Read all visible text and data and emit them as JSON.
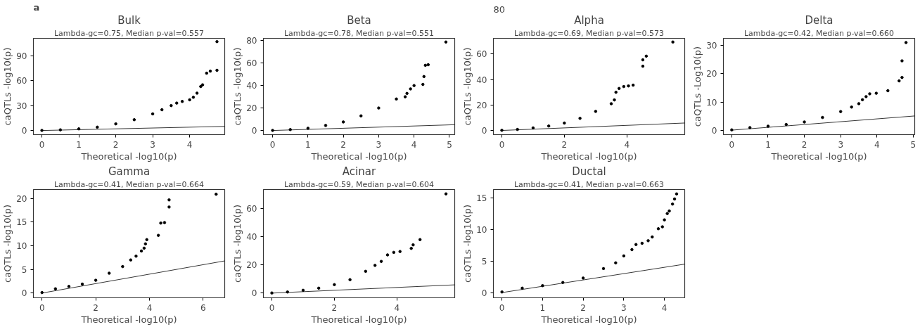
{
  "chart_data": [
    {
      "type": "scatter",
      "title": "Bulk",
      "subtitle": "Lambda-gc=0.75, Median p-val=0.557",
      "xlabel": "Theoretical -log10(p)",
      "ylabel": "caQTLs -log10(p)",
      "annotations": [
        "a"
      ],
      "grid": false,
      "xlim": [
        -0.23,
        4.95
      ],
      "ylim": [
        -5,
        111
      ],
      "xticks": [
        0,
        1,
        2,
        3,
        4
      ],
      "yticks": [
        0,
        30,
        60,
        90
      ],
      "series": [
        {
          "marker": "circle",
          "color": "#000000",
          "x": [
            0,
            0.5,
            1,
            1.5,
            2,
            2.5,
            3,
            3.25,
            3.5,
            3.65,
            3.8,
            4.0,
            4.1,
            4.2,
            4.3,
            4.35,
            4.46,
            4.56,
            4.74,
            4.74
          ],
          "values": [
            0.1,
            0.8,
            2,
            4,
            8,
            13,
            20,
            25,
            30,
            33,
            35,
            37,
            40,
            45,
            53,
            55,
            69,
            71.5,
            72.5,
            107
          ]
        },
        {
          "type": "line",
          "color": "#000000",
          "x": [
            0,
            4.95
          ],
          "values": [
            0,
            4.95
          ]
        }
      ]
    },
    {
      "type": "scatter",
      "title": "Beta",
      "subtitle": "Lambda-gc=0.78, Median p-val=0.551",
      "xlabel": "Theoretical -log10(p)",
      "ylabel": "caQTLs -log10(p)",
      "grid": false,
      "xlim": [
        -0.26,
        5.15
      ],
      "ylim": [
        -3.7,
        82
      ],
      "xticks": [
        0,
        1,
        2,
        3,
        4,
        5
      ],
      "yticks": [
        0,
        20,
        40,
        60,
        80
      ],
      "series": [
        {
          "marker": "circle",
          "color": "#000000",
          "x": [
            0,
            0.5,
            1,
            1.5,
            2,
            2.5,
            3,
            3.5,
            3.75,
            3.8,
            3.9,
            4.0,
            4.25,
            4.28,
            4.32,
            4.4,
            4.9
          ],
          "values": [
            0.1,
            0.8,
            2,
            4.5,
            7.6,
            13,
            20,
            28,
            30,
            33,
            37,
            40,
            41,
            48,
            58,
            58.5,
            78.7
          ]
        },
        {
          "type": "line",
          "color": "#000000",
          "x": [
            0,
            5.15
          ],
          "values": [
            0,
            5.15
          ]
        }
      ]
    },
    {
      "type": "scatter",
      "title": "Alpha",
      "subtitle": "Lambda-gc=0.69, Median p-val=0.573",
      "xlabel": "Theoretical -log10(p)",
      "ylabel": "caQTLs -log10(p)",
      "annotations": [
        "80"
      ],
      "grid": false,
      "xlim": [
        -0.27,
        5.85
      ],
      "ylim": [
        -3.3,
        72.4
      ],
      "xticks": [
        0,
        2,
        4
      ],
      "yticks": [
        0,
        20,
        40,
        60
      ],
      "series": [
        {
          "marker": "circle",
          "color": "#000000",
          "x": [
            0,
            0.5,
            1,
            1.5,
            2,
            2.5,
            3,
            3.5,
            3.6,
            3.65,
            3.75,
            3.9,
            4.05,
            4.2,
            4.51,
            4.51,
            4.62,
            5.47
          ],
          "values": [
            0.1,
            0.8,
            2,
            3.5,
            5.8,
            9.5,
            15,
            21,
            24,
            30,
            33,
            34.5,
            35,
            35.6,
            50.5,
            55.5,
            58.4,
            69.5
          ]
        },
        {
          "type": "line",
          "color": "#000000",
          "x": [
            0,
            5.85
          ],
          "values": [
            0,
            5.85
          ]
        }
      ]
    },
    {
      "type": "scatter",
      "title": "Delta",
      "subtitle": "Lambda-gc=0.42, Median p-val=0.660",
      "xlabel": "Theoretical -log10(p)",
      "ylabel": "caQTLs -Log10(p)",
      "grid": false,
      "xlim": [
        -0.23,
        5.04
      ],
      "ylim": [
        -1.6,
        32.6
      ],
      "xticks": [
        0,
        1,
        2,
        3,
        4,
        5
      ],
      "yticks": [
        0,
        10,
        20,
        30
      ],
      "series": [
        {
          "marker": "circle",
          "color": "#000000",
          "x": [
            0,
            0.5,
            1,
            1.5,
            2,
            2.5,
            3,
            3.3,
            3.5,
            3.6,
            3.7,
            3.8,
            3.98,
            4.3,
            4.61,
            4.69,
            4.69,
            4.8
          ],
          "values": [
            0.1,
            0.9,
            1.4,
            2.0,
            2.9,
            4.5,
            6.6,
            8.2,
            9.4,
            10.8,
            11.9,
            12.9,
            13.1,
            14,
            17.5,
            18.7,
            24.6,
            31.1
          ]
        },
        {
          "type": "line",
          "color": "#000000",
          "x": [
            0,
            5.04
          ],
          "values": [
            0,
            5.04
          ]
        }
      ]
    },
    {
      "type": "scatter",
      "title": "Gamma",
      "subtitle": "Lambda-gc=0.41, Median p-val=0.664",
      "xlabel": "Theoretical -log10(p)",
      "ylabel": "caQTLs -log10(p)",
      "grid": false,
      "xlim": [
        -0.32,
        6.8
      ],
      "ylim": [
        -1,
        21.9
      ],
      "xticks": [
        0,
        2,
        4,
        6
      ],
      "yticks": [
        0,
        5,
        10,
        15,
        20
      ],
      "series": [
        {
          "marker": "circle",
          "color": "#000000",
          "x": [
            0,
            0.5,
            1,
            1.5,
            2,
            2.5,
            3,
            3.3,
            3.5,
            3.7,
            3.8,
            3.85,
            3.9,
            4.33,
            4.42,
            4.56,
            4.73,
            4.73,
            6.48
          ],
          "values": [
            0.1,
            0.9,
            1.4,
            1.9,
            2.7,
            4.2,
            5.6,
            7,
            7.8,
            8.9,
            9.5,
            10.4,
            11.3,
            12.2,
            14.8,
            14.9,
            18.2,
            19.7,
            20.9
          ]
        },
        {
          "type": "line",
          "color": "#000000",
          "x": [
            0,
            6.8
          ],
          "values": [
            0,
            6.8
          ]
        }
      ]
    },
    {
      "type": "scatter",
      "title": "Acinar",
      "subtitle": "Lambda-gc=0.59, Median p-val=0.604",
      "xlabel": "Theoretical -log10(p)",
      "ylabel": "caQTLs -log10(p)",
      "grid": false,
      "xlim": [
        -0.27,
        5.85
      ],
      "ylim": [
        -3.3,
        73.2
      ],
      "xticks": [
        0,
        2,
        4
      ],
      "yticks": [
        0,
        20,
        40,
        60
      ],
      "series": [
        {
          "marker": "circle",
          "color": "#000000",
          "x": [
            0,
            0.5,
            1,
            1.5,
            2,
            2.5,
            3,
            3.3,
            3.5,
            3.7,
            3.9,
            4.1,
            4.46,
            4.52,
            4.74,
            5.57
          ],
          "values": [
            0.1,
            0.8,
            2,
            3.5,
            6,
            9.5,
            15.4,
            19.6,
            22.4,
            27,
            28.8,
            29.4,
            31.6,
            34.1,
            37.8,
            70.1
          ]
        },
        {
          "type": "line",
          "color": "#000000",
          "x": [
            0,
            5.85
          ],
          "values": [
            0,
            5.85
          ]
        }
      ]
    },
    {
      "type": "scatter",
      "title": "Ductal",
      "subtitle": "Lambda-gc=0.41, Median p-val=0.663",
      "xlabel": "Theoretical -log10(p)",
      "ylabel": "caQTLs -log10(p)",
      "grid": false,
      "xlim": [
        -0.21,
        4.5
      ],
      "ylim": [
        -0.82,
        16.3
      ],
      "xticks": [
        0,
        1,
        2,
        3,
        4
      ],
      "yticks": [
        0,
        5,
        10,
        15
      ],
      "series": [
        {
          "marker": "circle",
          "color": "#000000",
          "x": [
            0,
            0.5,
            1,
            1.5,
            2,
            2.5,
            2.8,
            3,
            3.2,
            3.3,
            3.45,
            3.6,
            3.7,
            3.85,
            3.95,
            4.0,
            4.07,
            4.12,
            4.2,
            4.25,
            4.3
          ],
          "values": [
            0.1,
            0.7,
            1.1,
            1.6,
            2.3,
            3.8,
            4.7,
            5.8,
            6.8,
            7.6,
            7.8,
            8.2,
            8.8,
            10.1,
            10.4,
            11.5,
            12.5,
            12.9,
            14,
            14.8,
            15.6
          ]
        },
        {
          "type": "line",
          "color": "#000000",
          "x": [
            0,
            4.5
          ],
          "values": [
            0,
            4.5
          ]
        }
      ]
    }
  ]
}
